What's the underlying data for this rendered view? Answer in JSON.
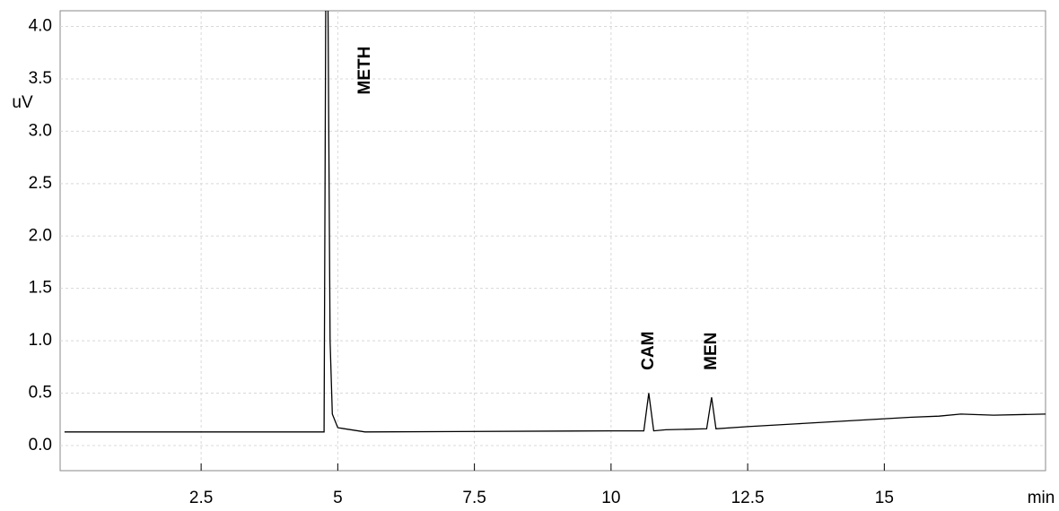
{
  "chart_data": {
    "type": "line",
    "y_label": "uV",
    "x_label": "min",
    "xlim": [
      -0.08,
      17.95
    ],
    "ylim": [
      -0.24,
      4.15
    ],
    "xticks": [
      2.5,
      5.0,
      7.5,
      10.0,
      12.5,
      15.0
    ],
    "yticks": [
      {
        "value": 0,
        "label": "0.0"
      },
      0.5,
      {
        "value": 1,
        "label": "1.0"
      },
      1.5,
      {
        "value": 2,
        "label": "2.0"
      },
      2.5,
      {
        "value": 3,
        "label": "3.0"
      },
      3.5,
      {
        "value": 4,
        "label": "4.0"
      }
    ],
    "grid": true,
    "x": [
      0,
      4.7,
      4.75,
      4.78,
      4.82,
      4.86,
      4.9,
      5.0,
      5.5,
      10.0,
      10.6,
      10.69,
      10.78,
      11.0,
      11.75,
      11.84,
      11.92,
      12.5,
      13.5,
      14.5,
      15.5,
      16.0,
      16.4,
      17.0,
      17.95
    ],
    "series": [
      {
        "name": "signal",
        "color": "#000000",
        "values": [
          0.13,
          0.13,
          0.13,
          4.3,
          4.3,
          1.0,
          0.3,
          0.17,
          0.13,
          0.14,
          0.14,
          0.5,
          0.14,
          0.15,
          0.16,
          0.46,
          0.16,
          0.18,
          0.21,
          0.24,
          0.27,
          0.28,
          0.3,
          0.29,
          0.3
        ]
      }
    ],
    "annotations": [
      {
        "text": "METH",
        "x": 5.5,
        "y": 3.35
      },
      {
        "text": "CAM",
        "x": 10.69,
        "y": 0.72
      },
      {
        "text": "MEN",
        "x": 11.84,
        "y": 0.72
      }
    ]
  }
}
